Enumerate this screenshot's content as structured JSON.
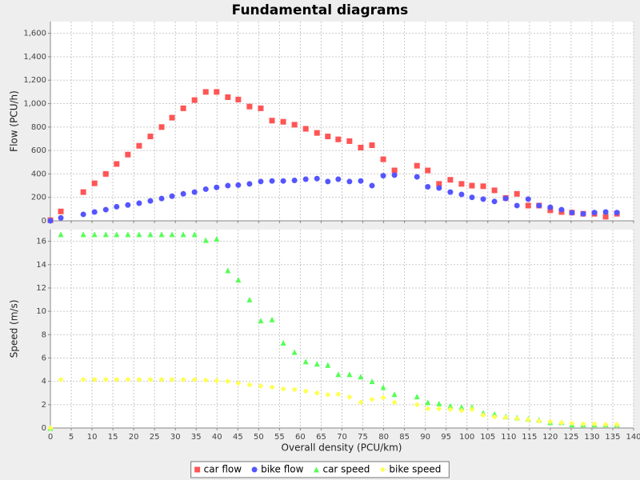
{
  "chart_data": {
    "type": "scatter",
    "title": "Fundamental diagrams",
    "xlabel": "Overall density (PCU/km)",
    "x": [
      0,
      2.5,
      7.9,
      10.6,
      13.3,
      15.9,
      18.6,
      21.3,
      24,
      26.7,
      29.2,
      31.9,
      34.6,
      37.3,
      39.9,
      42.6,
      45.1,
      47.8,
      50.5,
      53.2,
      55.9,
      58.6,
      61.3,
      64,
      66.6,
      69.1,
      71.8,
      74.5,
      77.2,
      79.9,
      82.6,
      88,
      90.6,
      93.3,
      96,
      98.7,
      101.2,
      103.9,
      106.6,
      109.3,
      112,
      114.7,
      117.3,
      120,
      122.7,
      125.2,
      127.9,
      130.6,
      133.3,
      136
    ],
    "xlim": [
      0,
      140
    ],
    "xticks": [
      0,
      5,
      10,
      15,
      20,
      25,
      30,
      35,
      40,
      45,
      50,
      55,
      60,
      65,
      70,
      75,
      80,
      85,
      90,
      95,
      100,
      105,
      110,
      115,
      120,
      125,
      130,
      135,
      140
    ],
    "grid": true,
    "legend": "bottom",
    "panels": [
      {
        "ylabel": "Flow (PCU/h)",
        "ylim": [
          0,
          1700
        ],
        "yticks": [
          0,
          200,
          400,
          600,
          800,
          {
            "value": 1000,
            "label": "1,000"
          },
          {
            "value": 1200,
            "label": "1,200"
          },
          {
            "value": 1400,
            "label": "1,400"
          },
          {
            "value": 1600,
            "label": "1,600"
          }
        ],
        "series": [
          {
            "name": "car flow",
            "color": "#ff5555",
            "marker": "square",
            "values": [
              5,
              80,
              245,
              320,
              400,
              485,
              565,
              640,
              720,
              800,
              880,
              960,
              1030,
              1100,
              1100,
              1055,
              1035,
              975,
              960,
              855,
              845,
              820,
              785,
              750,
              720,
              695,
              680,
              625,
              645,
              525,
              430,
              470,
              430,
              315,
              350,
              315,
              300,
              295,
              260,
              195,
              230,
              130,
              130,
              90,
              75,
              70,
              60,
              60,
              35,
              60
            ]
          },
          {
            "name": "bike flow",
            "color": "#5555ff",
            "marker": "circle",
            "values": [
              0,
              25,
              55,
              75,
              95,
              120,
              135,
              150,
              170,
              190,
              210,
              230,
              245,
              270,
              285,
              300,
              305,
              315,
              335,
              340,
              340,
              345,
              355,
              360,
              335,
              355,
              335,
              340,
              300,
              385,
              390,
              375,
              290,
              280,
              245,
              225,
              200,
              185,
              165,
              190,
              130,
              185,
              130,
              115,
              95,
              70,
              60,
              70,
              75,
              70
            ]
          }
        ]
      },
      {
        "ylabel": "Speed (m/s)",
        "ylim": [
          0,
          17
        ],
        "yticks": [
          0,
          2,
          4,
          6,
          8,
          10,
          12,
          14,
          16
        ],
        "series": [
          {
            "name": "car speed",
            "color": "#55ff55",
            "marker": "triangle",
            "values": [
              0,
              16.6,
              16.6,
              16.6,
              16.6,
              16.6,
              16.6,
              16.6,
              16.6,
              16.6,
              16.6,
              16.6,
              16.6,
              16.1,
              16.2,
              13.5,
              12.7,
              11.0,
              9.2,
              9.3,
              7.3,
              6.5,
              5.7,
              5.5,
              5.4,
              4.6,
              4.6,
              4.4,
              4.0,
              3.5,
              2.9,
              2.7,
              2.2,
              2.1,
              1.9,
              1.8,
              1.8,
              1.3,
              1.2,
              1.0,
              0.9,
              0.8,
              0.7,
              0.5,
              0.5,
              0.3,
              0.3,
              0.3,
              0.3,
              0.3
            ]
          },
          {
            "name": "bike speed",
            "color": "#ffff55",
            "marker": "diamond",
            "values": [
              0,
              4.15,
              4.15,
              4.15,
              4.15,
              4.15,
              4.15,
              4.15,
              4.15,
              4.15,
              4.15,
              4.15,
              4.15,
              4.1,
              4.05,
              4.0,
              3.85,
              3.7,
              3.6,
              3.5,
              3.35,
              3.3,
              3.15,
              3.0,
              2.85,
              2.9,
              2.65,
              2.2,
              2.45,
              2.6,
              2.2,
              2.0,
              1.65,
              1.65,
              1.6,
              1.5,
              1.6,
              1.1,
              0.95,
              0.9,
              0.8,
              0.7,
              0.6,
              0.55,
              0.45,
              0.4,
              0.35,
              0.35,
              0.3,
              0.3
            ]
          }
        ]
      }
    ]
  }
}
